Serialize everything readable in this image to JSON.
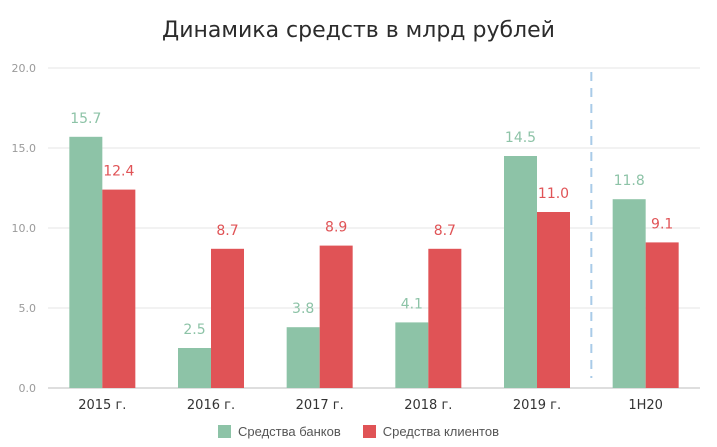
{
  "chart_data": {
    "type": "bar",
    "title": "Динамика средств в млрд рублей",
    "categories": [
      "2015 г.",
      "2016 г.",
      "2017 г.",
      "2018 г.",
      "2019 г.",
      "1H20"
    ],
    "series": [
      {
        "name": "Средства банков",
        "values": [
          15.7,
          2.5,
          3.8,
          4.1,
          14.5,
          11.8
        ],
        "color": "#8dc3a7"
      },
      {
        "name": "Средства клиентов",
        "values": [
          12.4,
          8.7,
          8.9,
          8.7,
          11.0,
          9.1
        ],
        "color": "#e05356"
      }
    ],
    "ylim": [
      0,
      20
    ],
    "yticks": [
      "0.0",
      "5.0",
      "10.0",
      "15.0",
      "20.0"
    ],
    "grid": true,
    "legend_position": "bottom",
    "divider_before_category": "1H20",
    "divider_color": "#a9cbe8",
    "label_colors": {
      "Средства банков": "#8dc3a7",
      "Средства клиентов": "#e05356"
    }
  }
}
